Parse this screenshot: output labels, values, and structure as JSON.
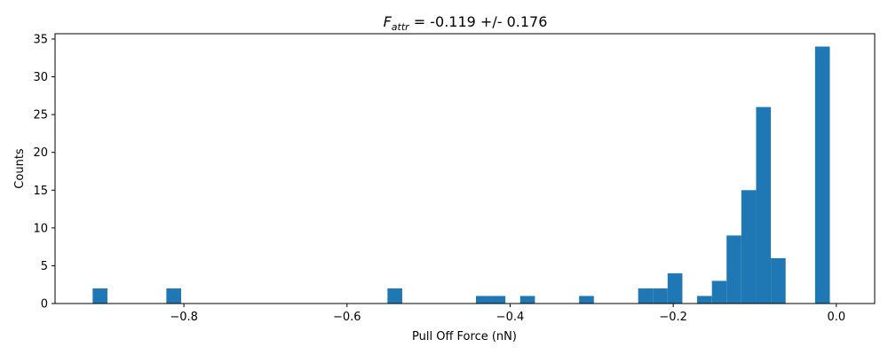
{
  "chart_data": {
    "type": "bar",
    "title": {
      "symbol": "F",
      "subscript": "attr",
      "text": " = -0.119 +/- 0.176"
    },
    "xlabel": "Pull Off Force (nN)",
    "ylabel": "Counts",
    "xlim": [
      -0.958,
      0.047
    ],
    "ylim": [
      0,
      35.7
    ],
    "xticks": [
      {
        "value": -0.8,
        "label": "−0.8"
      },
      {
        "value": -0.6,
        "label": "−0.6"
      },
      {
        "value": -0.4,
        "label": "−0.4"
      },
      {
        "value": -0.2,
        "label": "−0.2"
      },
      {
        "value": 0.0,
        "label": "0.0"
      }
    ],
    "yticks": [
      {
        "value": 0,
        "label": "0"
      },
      {
        "value": 5,
        "label": "5"
      },
      {
        "value": 10,
        "label": "10"
      },
      {
        "value": 15,
        "label": "15"
      },
      {
        "value": 20,
        "label": "20"
      },
      {
        "value": 25,
        "label": "25"
      },
      {
        "value": 30,
        "label": "30"
      },
      {
        "value": 35,
        "label": "35"
      }
    ],
    "grid": false,
    "bar_color": "#1f77b4",
    "bins": [
      {
        "x0": -0.9119,
        "x1": -0.8938,
        "count": 2
      },
      {
        "x0": -0.8215,
        "x1": -0.8034,
        "count": 2
      },
      {
        "x0": -0.5504,
        "x1": -0.5323,
        "count": 2
      },
      {
        "x0": -0.4419,
        "x1": -0.4239,
        "count": 1
      },
      {
        "x0": -0.4239,
        "x1": -0.4058,
        "count": 1
      },
      {
        "x0": -0.3877,
        "x1": -0.3696,
        "count": 1
      },
      {
        "x0": -0.3154,
        "x1": -0.2973,
        "count": 1
      },
      {
        "x0": -0.243,
        "x1": -0.225,
        "count": 2
      },
      {
        "x0": -0.225,
        "x1": -0.2069,
        "count": 2
      },
      {
        "x0": -0.2069,
        "x1": -0.1888,
        "count": 4
      },
      {
        "x0": -0.1707,
        "x1": -0.1526,
        "count": 1
      },
      {
        "x0": -0.1526,
        "x1": -0.1346,
        "count": 3
      },
      {
        "x0": -0.1346,
        "x1": -0.1165,
        "count": 9
      },
      {
        "x0": -0.1165,
        "x1": -0.0984,
        "count": 15
      },
      {
        "x0": -0.0984,
        "x1": -0.0803,
        "count": 26
      },
      {
        "x0": -0.0803,
        "x1": -0.0622,
        "count": 6
      },
      {
        "x0": -0.0261,
        "x1": -0.008,
        "count": 34
      }
    ]
  }
}
